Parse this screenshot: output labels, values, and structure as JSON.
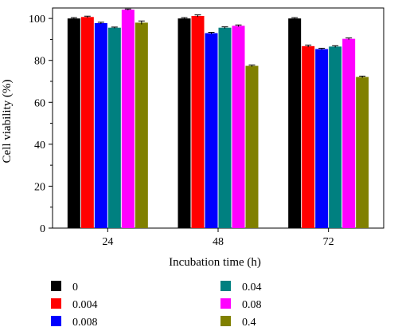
{
  "chart_data": {
    "type": "bar",
    "xlabel": "Incubation time (h)",
    "ylabel": "Cell viability (%)",
    "ylim": [
      0,
      105
    ],
    "yticks": [
      0,
      20,
      40,
      60,
      80,
      100
    ],
    "grid": false,
    "legend_position": "bottom",
    "categories": [
      "24",
      "48",
      "72"
    ],
    "series": [
      {
        "name": "0",
        "color": "#000000",
        "values": [
          100,
          100,
          100
        ],
        "errors": [
          0.4,
          0.4,
          0.4
        ]
      },
      {
        "name": "0.004",
        "color": "#ff0000",
        "values": [
          100.7,
          101.2,
          86.8
        ],
        "errors": [
          0.4,
          0.5,
          0.5
        ]
      },
      {
        "name": "0.008",
        "color": "#0000ff",
        "values": [
          97.8,
          93.0,
          85.4
        ],
        "errors": [
          0.4,
          0.4,
          0.4
        ]
      },
      {
        "name": "0.04",
        "color": "#008080",
        "values": [
          95.6,
          95.6,
          86.6
        ],
        "errors": [
          0.3,
          0.4,
          0.4
        ]
      },
      {
        "name": "0.08",
        "color": "#ff00ff",
        "values": [
          104.2,
          96.5,
          90.3
        ],
        "errors": [
          0.3,
          0.4,
          0.4
        ]
      },
      {
        "name": "0.4",
        "color": "#808000",
        "values": [
          98.0,
          77.4,
          72.1
        ],
        "errors": [
          0.8,
          0.4,
          0.4
        ]
      }
    ]
  }
}
